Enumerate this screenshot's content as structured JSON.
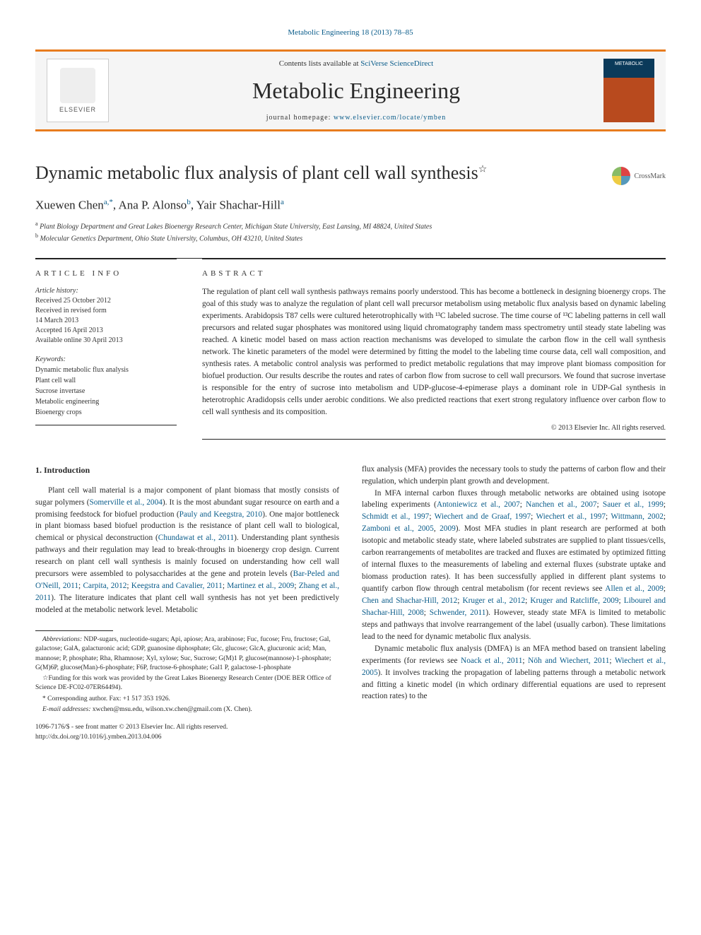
{
  "topLink": {
    "journal": "Metabolic Engineering",
    "citation": "18 (2013) 78–85"
  },
  "header": {
    "contentsPrefix": "Contents lists available at",
    "contentsLink": "SciVerse ScienceDirect",
    "journalName": "Metabolic Engineering",
    "homepagePrefix": "journal homepage:",
    "homepageUrl": "www.elsevier.com/locate/ymben",
    "elsevierName": "ELSEVIER",
    "coverText": "METABOLIC"
  },
  "article": {
    "title": "Dynamic metabolic flux analysis of plant cell wall synthesis",
    "starNote": "☆",
    "crossmark": "CrossMark",
    "authorsHtmlParts": {
      "a1": "Xuewen Chen",
      "a1sup": "a,*",
      "a2": ", Ana P. Alonso",
      "a2sup": "b",
      "a3": ", Yair Shachar-Hill",
      "a3sup": "a"
    },
    "affiliations": {
      "a": "Plant Biology Department and Great Lakes Bioenergy Research Center, Michigan State University, East Lansing, MI 48824, United States",
      "b": "Molecular Genetics Department, Ohio State University, Columbus, OH 43210, United States"
    }
  },
  "info": {
    "sectionHead": "ARTICLE INFO",
    "historyLabel": "Article history:",
    "received": "Received 25 October 2012",
    "revised": "Received in revised form",
    "revisedDate": "14 March 2013",
    "accepted": "Accepted 16 April 2013",
    "online": "Available online 30 April 2013",
    "keywordsLabel": "Keywords:",
    "keywords": [
      "Dynamic metabolic flux analysis",
      "Plant cell wall",
      "Sucrose invertase",
      "Metabolic engineering",
      "Bioenergy crops"
    ]
  },
  "abstract": {
    "sectionHead": "ABSTRACT",
    "text": "The regulation of plant cell wall synthesis pathways remains poorly understood. This has become a bottleneck in designing bioenergy crops. The goal of this study was to analyze the regulation of plant cell wall precursor metabolism using metabolic flux analysis based on dynamic labeling experiments. Arabidopsis T87 cells were cultured heterotrophically with ¹³C labeled sucrose. The time course of ¹³C labeling patterns in cell wall precursors and related sugar phosphates was monitored using liquid chromatography tandem mass spectrometry until steady state labeling was reached. A kinetic model based on mass action reaction mechanisms was developed to simulate the carbon flow in the cell wall synthesis network. The kinetic parameters of the model were determined by fitting the model to the labeling time course data, cell wall composition, and synthesis rates. A metabolic control analysis was performed to predict metabolic regulations that may improve plant biomass composition for biofuel production. Our results describe the routes and rates of carbon flow from sucrose to cell wall precursors. We found that sucrose invertase is responsible for the entry of sucrose into metabolism and UDP-glucose-4-epimerase plays a dominant role in UDP-Gal synthesis in heterotrophic Aradidopsis cells under aerobic conditions. We also predicted reactions that exert strong regulatory influence over carbon flow to cell wall synthesis and its composition.",
    "copyright": "© 2013 Elsevier Inc. All rights reserved."
  },
  "intro": {
    "heading": "1.  Introduction",
    "p1_a": "Plant cell wall material is a major component of plant biomass that mostly consists of sugar polymers (",
    "p1_c1": "Somerville et al., 2004",
    "p1_b": "). It is the most abundant sugar resource on earth and a promising feedstock for biofuel production (",
    "p1_c2": "Pauly and Keegstra, 2010",
    "p1_c": "). One major bottleneck in plant biomass based biofuel production is the resistance of plant cell wall to biological, chemical or physical deconstruction (",
    "p1_c3": "Chundawat et al., 2011",
    "p1_d": "). Understanding plant synthesis pathways and their regulation may lead to break-throughs in bioenergy crop design. Current research on plant cell wall synthesis is mainly focused on understanding how cell wall precursors were assembled to polysaccharides at the gene and protein levels (",
    "p1_c4": "Bar-Peled and O'Neill, 2011",
    "p1_e": "; ",
    "p1_c5": "Carpita, 2012",
    "p1_f": "; ",
    "p1_c6": "Keegstra and Cavalier, 2011",
    "p1_g": "; ",
    "p1_c7": "Martinez et al., 2009",
    "p1_h": "; ",
    "p1_c8": "Zhang et al., 2011",
    "p1_i": "). The literature indicates that plant cell wall synthesis has not yet been predictively modeled at the metabolic network level. Metabolic",
    "r1_a": "flux analysis (MFA) provides the necessary tools to study the patterns of carbon flow and their regulation, which underpin plant growth and development.",
    "r2_a": "In MFA internal carbon fluxes through metabolic networks are obtained using isotope labeling experiments (",
    "r2_c1": "Antoniewicz et al., 2007",
    "r2_b": "; ",
    "r2_c2": "Nanchen et al., 2007",
    "r2_c": "; ",
    "r2_c3": "Sauer et al., 1999",
    "r2_d": "; ",
    "r2_c4": "Schmidt et al., 1997",
    "r2_e": "; ",
    "r2_c5": "Wiechert and de Graaf, 1997",
    "r2_f": "; ",
    "r2_c6": "Wiechert et al., 1997",
    "r2_g": "; ",
    "r2_c7": "Wittmann, 2002",
    "r2_h": "; ",
    "r2_c8": "Zamboni et al., 2005",
    "r2_i": ", ",
    "r2_c9": "2009",
    "r2_j": "). Most MFA studies in plant research are performed at both isotopic and metabolic steady state, where labeled substrates are supplied to plant tissues/cells, carbon rearrangements of metabolites are tracked and fluxes are estimated by optimized fitting of internal fluxes to the measurements of labeling and external fluxes (substrate uptake and biomass production rates). It has been successfully applied in different plant systems to quantify carbon flow through central metabolism (for recent reviews see ",
    "r2_c10": "Allen et al., 2009",
    "r2_k": "; ",
    "r2_c11": "Chen and Shachar-Hill, 2012",
    "r2_l": "; ",
    "r2_c12": "Kruger et al., 2012",
    "r2_m": "; ",
    "r2_c13": "Kruger and Ratcliffe, 2009",
    "r2_n": "; ",
    "r2_c14": "Libourel and Shachar-Hill, 2008",
    "r2_o": "; ",
    "r2_c15": "Schwender, 2011",
    "r2_p": "). However, steady state MFA is limited to metabolic steps and pathways that involve rearrangement of the label (usually carbon). These limitations lead to the need for dynamic metabolic flux analysis.",
    "r3_a": "Dynamic metabolic flux analysis (DMFA) is an MFA method based on transient labeling experiments (for reviews see ",
    "r3_c1": "Noack et al., 2011",
    "r3_b": "; ",
    "r3_c2": "Nöh and Wiechert, 2011",
    "r3_c": "; ",
    "r3_c3": "Wiechert et al., 2005",
    "r3_d": "). It involves tracking the propagation of labeling patterns through a metabolic network and fitting a kinetic model (in which ordinary differential equations are used to represent reaction rates) to the"
  },
  "footnotes": {
    "abbrevLabel": "Abbreviations:",
    "abbrev": " NDP-sugars, nucleotide-sugars; Api, apiose; Ara, arabinose; Fuc, fucose; Fru, fructose; Gal, galactose; GalA, galacturonic acid; GDP, guanosine diphosphate; Glc, glucose; GlcA, glucuronic acid; Man, mannose; P, phosphate; Rha, Rhamnose; Xyl, xylose; Suc, Sucrose; G(M)1 P, glucose(mannose)-1-phosphate; G(M)6P, glucose(Man)-6-phosphate; F6P, fructose-6-phosphate; Gal1 P, galactose-1-phosphate",
    "funding": "☆Funding for this work was provided by the Great Lakes Bioenergy Research Center (DOE BER Office of Science DE-FC02-07ER64494).",
    "corrLabel": "* Corresponding author. Fax: +1 517 353 1926.",
    "emailLabel": "E-mail addresses:",
    "emails": " xwchen@msu.edu, wilson.xw.chen@gmail.com (X. Chen)."
  },
  "footer": {
    "line1": "1096-7176/$ - see front matter © 2013 Elsevier Inc. All rights reserved.",
    "doi": "http://dx.doi.org/10.1016/j.ymben.2013.04.006"
  },
  "colors": {
    "accentOrange": "#e87c1e",
    "linkBlue": "#0a5c8a",
    "textDark": "#2a2a2a",
    "ruleDark": "#222222",
    "bgGrey": "#f5f5f5",
    "white": "#ffffff"
  },
  "typography": {
    "bodyFont": "Georgia, Times New Roman, serif",
    "titleSize": 26,
    "journalNameSize": 32,
    "bodySize": 11.3,
    "footnoteSize": 9.5,
    "infoSize": 10
  }
}
